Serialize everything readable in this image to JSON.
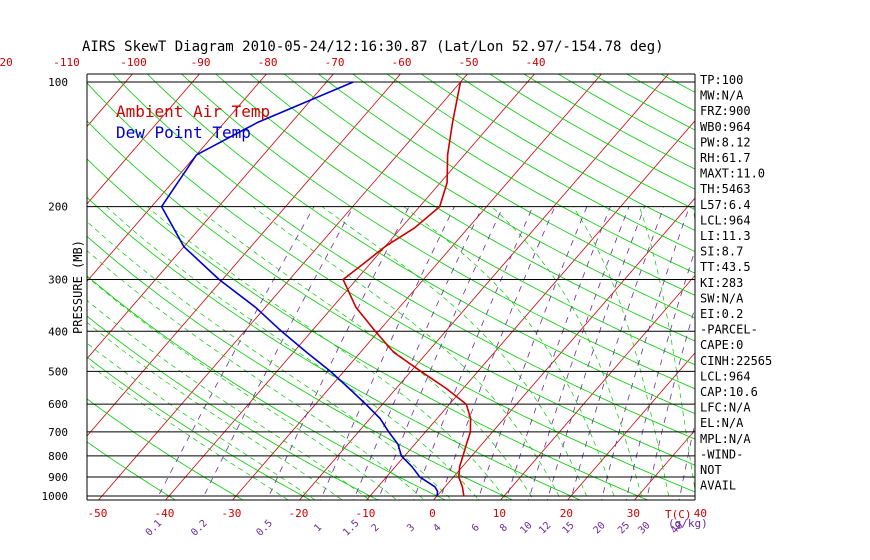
{
  "chart_data": {
    "type": "line",
    "title": "AIRS SkewT Diagram 2010-05-24/12:16:30.87 (Lat/Lon 52.97/-154.78 deg)",
    "ylabel": "PRESSURE (MB)",
    "xlabel": "T(C)",
    "mixing_ratio_unit_label": "(g/kg)",
    "y_scale": "log",
    "y_range": [
      1000,
      100
    ],
    "x_range": [
      -50,
      40
    ],
    "pressure_ticks": [
      100,
      200,
      300,
      400,
      500,
      600,
      700,
      800,
      900,
      1000
    ],
    "bottom_temp_ticks": [
      "-50",
      "-40",
      "-30",
      "-20",
      "-10",
      "0",
      "10",
      "20",
      "30",
      "40"
    ],
    "top_temp_ticks": [
      "-120",
      "-110",
      "-100",
      "-90",
      "-80",
      "-70",
      "-60",
      "-50",
      "-40"
    ],
    "mixing_ratio_labels": [
      "0.1",
      "0.2",
      "0.5",
      "1",
      "1.5",
      "2",
      "3",
      "4",
      "6",
      "8",
      "10",
      "12",
      "15",
      "20",
      "25",
      "30",
      "40"
    ],
    "legend": [
      {
        "name": "Ambient Air Temp",
        "color": "#cc0000"
      },
      {
        "name": "Dew Point Temp",
        "color": "#0000cc"
      }
    ],
    "series": [
      {
        "name": "Ambient Air Temp",
        "color": "#cc0000",
        "points": [
          [
            1000,
            4.0
          ],
          [
            950,
            2.6
          ],
          [
            900,
            0.8
          ],
          [
            850,
            -0.4
          ],
          [
            800,
            -1.3
          ],
          [
            750,
            -2.3
          ],
          [
            700,
            -3.3
          ],
          [
            650,
            -5.0
          ],
          [
            600,
            -7.5
          ],
          [
            550,
            -12.5
          ],
          [
            500,
            -18.5
          ],
          [
            450,
            -25.0
          ],
          [
            400,
            -30.5
          ],
          [
            350,
            -36.5
          ],
          [
            300,
            -42.0
          ],
          [
            275,
            -41.0
          ],
          [
            250,
            -40.0
          ],
          [
            225,
            -38.0
          ],
          [
            200,
            -37.0
          ],
          [
            175,
            -39.0
          ],
          [
            150,
            -42.5
          ],
          [
            125,
            -46.0
          ],
          [
            100,
            -50.0
          ]
        ]
      },
      {
        "name": "Dew Point Temp",
        "color": "#0000cc",
        "points": [
          [
            1000,
            0.0
          ],
          [
            975,
            -0.5
          ],
          [
            950,
            -1.5
          ],
          [
            900,
            -5.0
          ],
          [
            850,
            -7.5
          ],
          [
            800,
            -10.5
          ],
          [
            750,
            -12.5
          ],
          [
            700,
            -15.5
          ],
          [
            650,
            -18.5
          ],
          [
            600,
            -22.5
          ],
          [
            550,
            -27.0
          ],
          [
            500,
            -32.0
          ],
          [
            450,
            -38.0
          ],
          [
            400,
            -44.5
          ],
          [
            350,
            -51.5
          ],
          [
            300,
            -60.5
          ],
          [
            250,
            -70.0
          ],
          [
            200,
            -78.5
          ],
          [
            150,
            -80.0
          ],
          [
            125,
            -75.0
          ],
          [
            100,
            -66.0
          ]
        ]
      }
    ],
    "stats": [
      "TP:100",
      "MW:N/A",
      "FRZ:900",
      "WB0:964",
      "PW:8.12",
      "RH:61.7",
      "MAXT:11.0",
      "TH:5463",
      "L57:6.4",
      "LCL:964",
      "LI:11.3",
      "SI:8.7",
      "TT:43.5",
      "KI:283",
      "SW:N/A",
      "EI:0.2",
      "-PARCEL-",
      "CAPE:0",
      "CINH:22565",
      "LCL:964",
      "CAP:10.6",
      "LFC:N/A",
      "EL:N/A",
      "MPL:N/A",
      "-WIND-",
      "NOT",
      "AVAIL"
    ],
    "grid": true,
    "colors": {
      "isotherm": "#cc0000",
      "dry_adiabat": "#00cc00",
      "moist_adiabat": "#00cc00",
      "mixing_ratio": "#6b2a9a",
      "axis": "#000000"
    }
  }
}
